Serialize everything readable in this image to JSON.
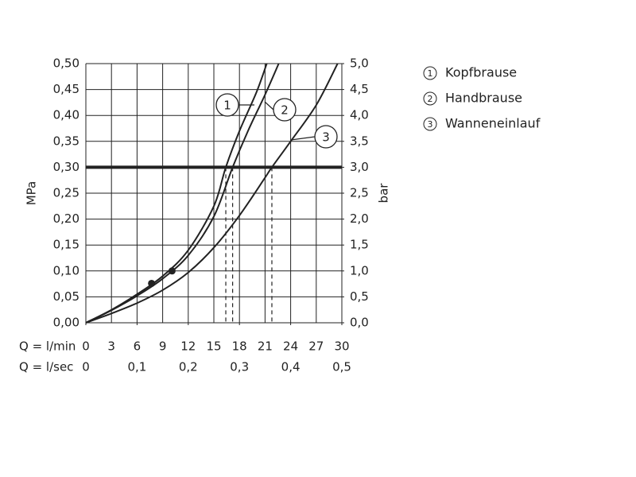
{
  "chart_data": {
    "type": "line",
    "ylabel": "MPa",
    "y2label": "bar",
    "xlabel": "Q = l/min",
    "x2label": "Q = l/sec",
    "xlim": [
      0,
      30
    ],
    "xticks": [
      0,
      3,
      6,
      9,
      12,
      15,
      18,
      21,
      24,
      27,
      30
    ],
    "x2lim": [
      0,
      0.5
    ],
    "x2ticks": [
      0,
      {
        "value": 0.1,
        "label": "0,1"
      },
      {
        "value": 0.2,
        "label": "0,2"
      },
      {
        "value": 0.3,
        "label": "0,3"
      },
      {
        "value": 0.4,
        "label": "0,4"
      },
      {
        "value": 0.5,
        "label": "0,5"
      }
    ],
    "ylim": [
      0,
      0.5
    ],
    "yticks": [
      {
        "value": 0,
        "label": "0,00"
      },
      {
        "value": 0.05,
        "label": "0,05"
      },
      {
        "value": 0.1,
        "label": "0,10"
      },
      {
        "value": 0.15,
        "label": "0,15"
      },
      {
        "value": 0.2,
        "label": "0,20"
      },
      {
        "value": 0.25,
        "label": "0,25"
      },
      {
        "value": 0.3,
        "label": "0,30"
      },
      {
        "value": 0.35,
        "label": "0,35"
      },
      {
        "value": 0.4,
        "label": "0,40"
      },
      {
        "value": 0.45,
        "label": "0,45"
      },
      {
        "value": 0.5,
        "label": "0,50"
      }
    ],
    "y2lim": [
      0,
      5
    ],
    "y2ticks": [
      {
        "value": 0,
        "label": "0,0"
      },
      {
        "value": 0.5,
        "label": "0,5"
      },
      {
        "value": 1,
        "label": "1,0"
      },
      {
        "value": 1.5,
        "label": "1,5"
      },
      {
        "value": 2,
        "label": "2,0"
      },
      {
        "value": 2.5,
        "label": "2,5"
      },
      {
        "value": 3,
        "label": "3,0"
      },
      {
        "value": 3.5,
        "label": "3,5"
      },
      {
        "value": 4,
        "label": "4,0"
      },
      {
        "value": 4.5,
        "label": "4,5"
      },
      {
        "value": 5,
        "label": "5,0"
      }
    ],
    "grid": true,
    "reference_y": 0.3,
    "drop_x": [
      16.4,
      17.2,
      21.8
    ],
    "markers": {
      "x": [
        7.7,
        10.1
      ],
      "y": [
        0.076,
        0.1
      ]
    },
    "series": [
      {
        "label": "1",
        "name": "Kopfbrause",
        "color": "#222222",
        "x": [
          0,
          3,
          6,
          9,
          12,
          15,
          16.4,
          18,
          20,
          21.2
        ],
        "values": [
          0,
          0.025,
          0.055,
          0.09,
          0.14,
          0.225,
          0.3,
          0.37,
          0.445,
          0.5
        ]
      },
      {
        "label": "2",
        "name": "Handbrause",
        "color": "#222222",
        "x": [
          0,
          3,
          6,
          9,
          12,
          15,
          17.2,
          19,
          21,
          22.6
        ],
        "values": [
          0,
          0.024,
          0.052,
          0.085,
          0.13,
          0.205,
          0.3,
          0.37,
          0.44,
          0.5
        ]
      },
      {
        "label": "3",
        "name": "Wanneneinlauf",
        "color": "#222222",
        "x": [
          0,
          3,
          6,
          9,
          12,
          15,
          18,
          21,
          21.8,
          24,
          27,
          29.5
        ],
        "values": [
          0,
          0.018,
          0.038,
          0.063,
          0.097,
          0.145,
          0.207,
          0.28,
          0.3,
          0.35,
          0.42,
          0.5
        ]
      }
    ]
  }
}
